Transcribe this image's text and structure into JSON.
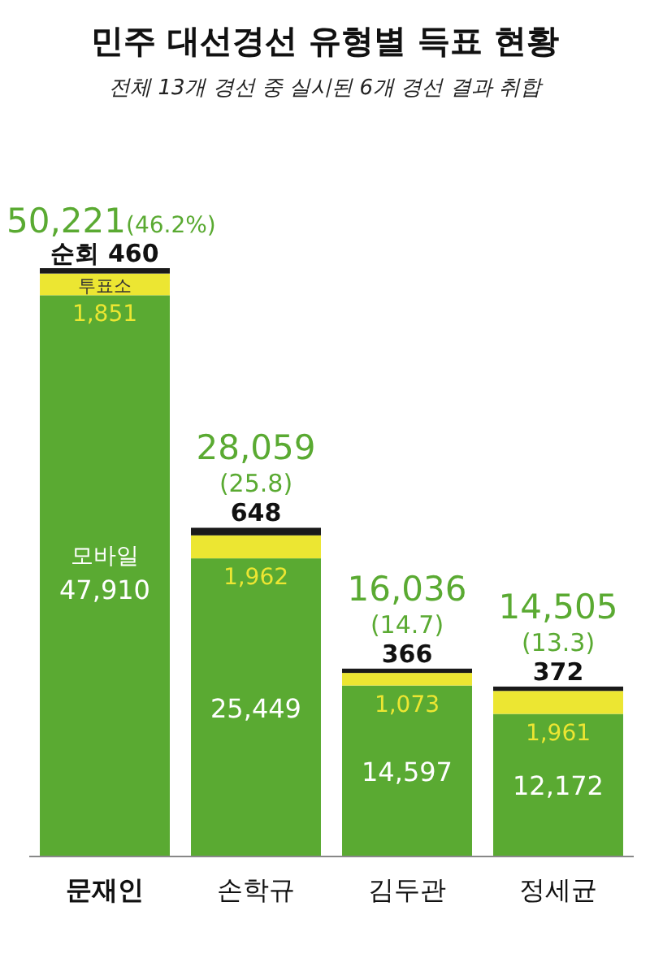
{
  "chart_data": {
    "type": "bar",
    "stacked": true,
    "title": "민주 대선경선 유형별 득표 현황",
    "subtitle": "전체 13개 경선 중 실시된 6개 경선 결과 취합",
    "categories": [
      "문재인",
      "손학규",
      "김두관",
      "정세균"
    ],
    "series": [
      {
        "name": "모바일",
        "color": "#5aaa32",
        "values": [
          47910,
          25449,
          14597,
          12172
        ],
        "value_labels": [
          "47,910",
          "25,449",
          "14,597",
          "12,172"
        ]
      },
      {
        "name": "투표소",
        "color": "#ece632",
        "values": [
          1851,
          1962,
          1073,
          1961
        ],
        "value_labels": [
          "1,851",
          "1,962",
          "1,073",
          "1,961"
        ]
      },
      {
        "name": "순회",
        "color": "#1a1a1a",
        "values": [
          460,
          648,
          366,
          372
        ],
        "value_labels": [
          "460",
          "648",
          "366",
          "372"
        ]
      }
    ],
    "totals": [
      "50,221(46.2%)",
      "28,059 (25.8)",
      "16,036 (14.7)",
      "14,505 (13.3)"
    ]
  }
}
